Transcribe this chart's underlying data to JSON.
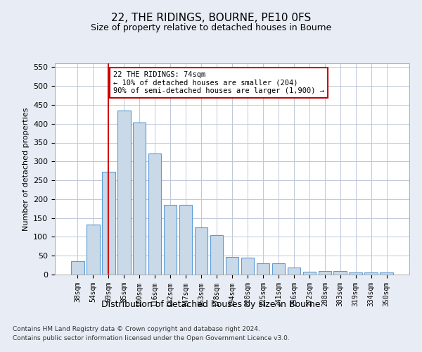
{
  "title": "22, THE RIDINGS, BOURNE, PE10 0FS",
  "subtitle": "Size of property relative to detached houses in Bourne",
  "xlabel": "Distribution of detached houses by size in Bourne",
  "ylabel": "Number of detached properties",
  "categories": [
    "38sqm",
    "54sqm",
    "69sqm",
    "85sqm",
    "100sqm",
    "116sqm",
    "132sqm",
    "147sqm",
    "163sqm",
    "178sqm",
    "194sqm",
    "210sqm",
    "225sqm",
    "241sqm",
    "256sqm",
    "272sqm",
    "288sqm",
    "303sqm",
    "319sqm",
    "334sqm",
    "350sqm"
  ],
  "values": [
    35,
    132,
    272,
    435,
    404,
    322,
    184,
    184,
    125,
    104,
    46,
    45,
    30,
    30,
    18,
    8,
    10,
    10,
    5,
    5,
    6
  ],
  "bar_color": "#c9d9e8",
  "bar_edge_color": "#5b9bd5",
  "vline_x": 2,
  "vline_color": "#cc0000",
  "annotation_text": "22 THE RIDINGS: 74sqm\n← 10% of detached houses are smaller (204)\n90% of semi-detached houses are larger (1,900) →",
  "annotation_box_color": "#ffffff",
  "annotation_box_edge": "#cc0000",
  "ylim": [
    0,
    560
  ],
  "yticks": [
    0,
    50,
    100,
    150,
    200,
    250,
    300,
    350,
    400,
    450,
    500,
    550
  ],
  "footnote1": "Contains HM Land Registry data © Crown copyright and database right 2024.",
  "footnote2": "Contains public sector information licensed under the Open Government Licence v3.0.",
  "bg_color": "#e8edf5",
  "plot_bg_color": "#ffffff"
}
